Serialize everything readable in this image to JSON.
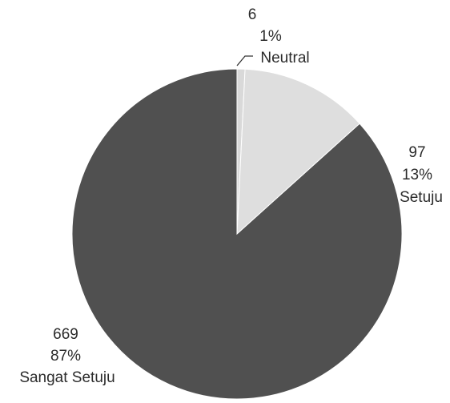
{
  "chart_data": {
    "type": "pie",
    "slices": [
      {
        "name": "Neutral",
        "count": "6",
        "percent": "1%",
        "value": 6,
        "color": "#d9d9d9"
      },
      {
        "name": "Setuju",
        "count": "97",
        "percent": "13%",
        "value": 97,
        "color": "#dedede"
      },
      {
        "name": "Sangat Setuju",
        "count": "669",
        "percent": "87%",
        "value": 669,
        "color": "#505050"
      }
    ],
    "start_position": "top",
    "direction": "clockwise",
    "legend": "none"
  }
}
